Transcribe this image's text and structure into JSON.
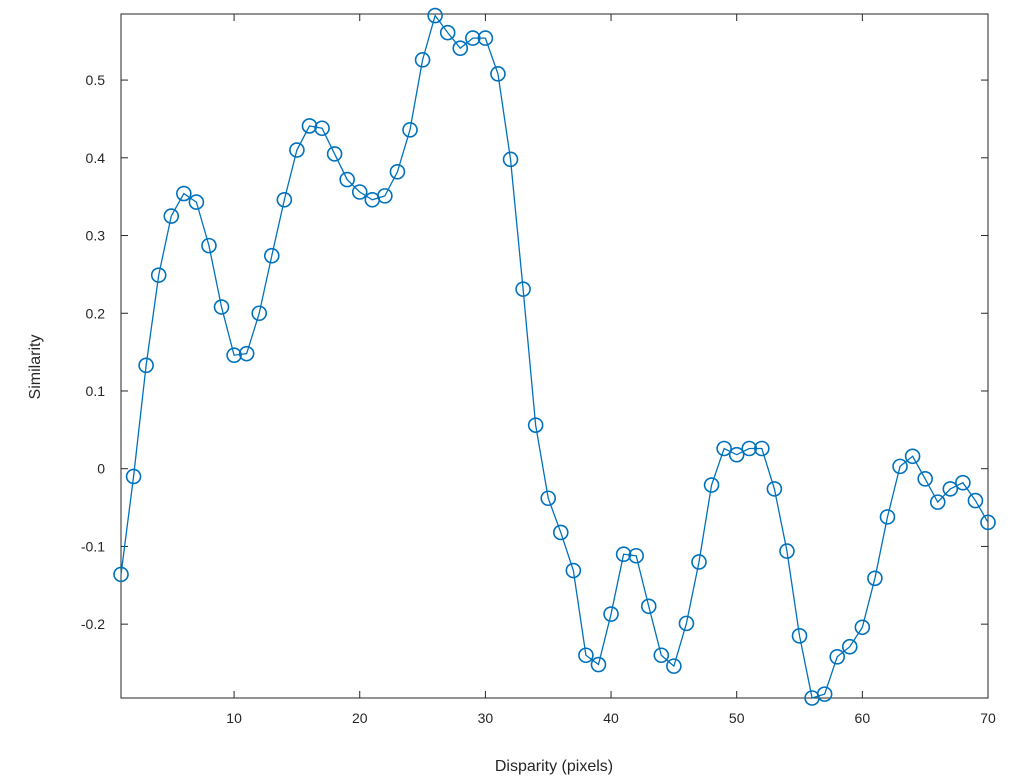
{
  "chart_data": {
    "type": "line",
    "title": "",
    "xlabel": "Disparity (pixels)",
    "ylabel": "Similarity",
    "xlim": [
      1,
      70
    ],
    "ylim": [
      -0.295,
      0.585
    ],
    "xticks": [
      10,
      20,
      30,
      40,
      50,
      60,
      70
    ],
    "yticks": [
      -0.2,
      -0.1,
      0,
      0.1,
      0.2,
      0.3,
      0.4,
      0.5
    ],
    "ytick_labels": [
      "-0.2",
      "-0.1",
      "0",
      "0.1",
      "0.2",
      "0.3",
      "0.4",
      "0.5"
    ],
    "grid": false,
    "marker": "circle",
    "color": "#0072BD",
    "series": [
      {
        "x": [
          1,
          2,
          3,
          4,
          5,
          6,
          7,
          8,
          9,
          10,
          11,
          12,
          13,
          14,
          15,
          16,
          17,
          18,
          19,
          20,
          21,
          22,
          23,
          24,
          25,
          26,
          27,
          28,
          29,
          30,
          31,
          32,
          33,
          34,
          35,
          36,
          37,
          38,
          39,
          40,
          41,
          42,
          43,
          44,
          45,
          46,
          47,
          48,
          49,
          50,
          51,
          52,
          53,
          54,
          55,
          56,
          57,
          58,
          59,
          60,
          61,
          62,
          63,
          64,
          65,
          66,
          67,
          68,
          69,
          70
        ],
        "y": [
          -0.136,
          -0.01,
          0.133,
          0.249,
          0.325,
          0.354,
          0.343,
          0.287,
          0.208,
          0.146,
          0.148,
          0.2,
          0.274,
          0.346,
          0.41,
          0.441,
          0.438,
          0.405,
          0.372,
          0.356,
          0.346,
          0.351,
          0.382,
          0.436,
          0.526,
          0.583,
          0.561,
          0.541,
          0.554,
          0.554,
          0.508,
          0.398,
          0.231,
          0.056,
          -0.038,
          -0.082,
          -0.131,
          -0.24,
          -0.252,
          -0.187,
          -0.11,
          -0.112,
          -0.177,
          -0.24,
          -0.254,
          -0.199,
          -0.12,
          -0.021,
          0.026,
          0.018,
          0.026,
          0.026,
          -0.026,
          -0.106,
          -0.215,
          -0.295,
          -0.29,
          -0.242,
          -0.229,
          -0.204,
          -0.141,
          -0.062,
          0.003,
          0.016,
          -0.013,
          -0.043,
          -0.026,
          -0.018,
          -0.041,
          -0.069
        ]
      }
    ]
  }
}
